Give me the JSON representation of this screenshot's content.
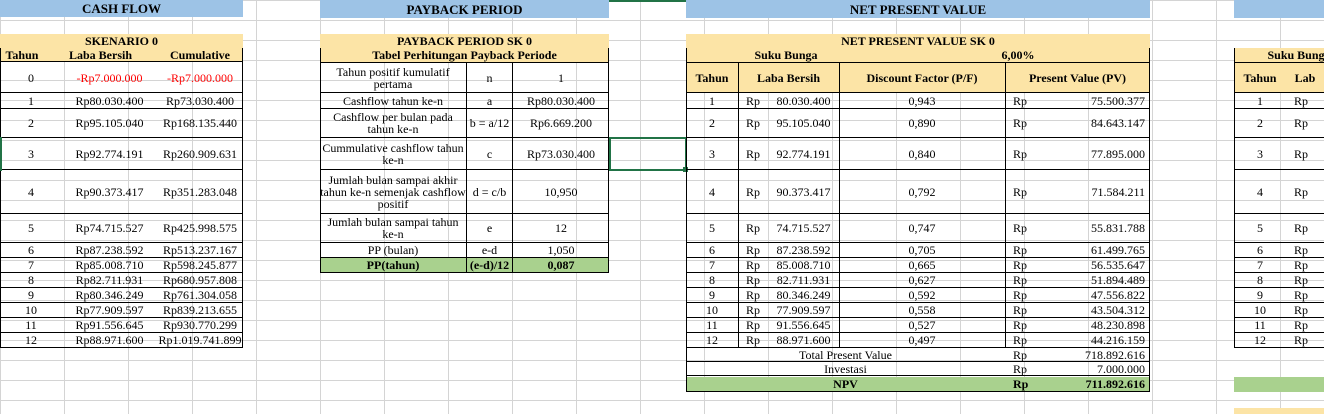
{
  "cash_flow": {
    "title": "CASH FLOW",
    "scenario": "SKENARIO 0",
    "headers": [
      "Tahun",
      "Laba Bersih",
      "Cumulative"
    ],
    "rows": [
      [
        "0",
        "-Rp7.000.000",
        "-Rp7.000.000"
      ],
      [
        "1",
        "Rp80.030.400",
        "Rp73.030.400"
      ],
      [
        "2",
        "Rp95.105.040",
        "Rp168.135.440"
      ],
      [
        "3",
        "Rp92.774.191",
        "Rp260.909.631"
      ],
      [
        "4",
        "Rp90.373.417",
        "Rp351.283.048"
      ],
      [
        "5",
        "Rp74.715.527",
        "Rp425.998.575"
      ],
      [
        "6",
        "Rp87.238.592",
        "Rp513.237.167"
      ],
      [
        "7",
        "Rp85.008.710",
        "Rp598.245.877"
      ],
      [
        "8",
        "Rp82.711.931",
        "Rp680.957.808"
      ],
      [
        "9",
        "Rp80.346.249",
        "Rp761.304.058"
      ],
      [
        "10",
        "Rp77.909.597",
        "Rp839.213.655"
      ],
      [
        "11",
        "Rp91.556.645",
        "Rp930.770.299"
      ],
      [
        "12",
        "Rp88.971.600",
        "Rp1.019.741.899"
      ]
    ]
  },
  "payback": {
    "title": "PAYBACK PERIOD",
    "subtitle": "PAYBACK PERIOD SK 0",
    "table_title": "Tabel Perhitungan Payback Periode",
    "rows": [
      {
        "label": "Tahun positif kumulatif pertama",
        "sym": "n",
        "value": "1"
      },
      {
        "label": "Cashflow tahun ke-n",
        "sym": "a",
        "value": "Rp80.030.400"
      },
      {
        "label": "Cashflow per bulan pada tahun ke-n",
        "sym": "b = a/12",
        "value": "Rp6.669.200"
      },
      {
        "label": "Cummulative cashflow tahun ke-n",
        "sym": "c",
        "value": "Rp73.030.400"
      },
      {
        "label": "Jumlah bulan sampai akhir tahun ke-n semenjak cashflow positif",
        "sym": "d = c/b",
        "value": "10,950"
      },
      {
        "label": "Jumlah bulan sampai tahun ke-n",
        "sym": "e",
        "value": "12"
      },
      {
        "label": "PP (bulan)",
        "sym": "e-d",
        "value": "1,050"
      }
    ],
    "result": {
      "label": "PP(tahun)",
      "sym": "(e-d)/12",
      "value": "0,087"
    }
  },
  "npv": {
    "title": "NET PRESENT VALUE",
    "subtitle": "NET PRESENT VALUE SK 0",
    "rate_label": "Suku Bunga",
    "rate_value": "6,00%",
    "headers": [
      "Tahun",
      "Laba Bersih",
      "Discount Factor (P/F)",
      "Present Value (PV)"
    ],
    "currency": "Rp",
    "rows": [
      [
        "1",
        "80.030.400",
        "0,943",
        "75.500.377"
      ],
      [
        "2",
        "95.105.040",
        "0,890",
        "84.643.147"
      ],
      [
        "3",
        "92.774.191",
        "0,840",
        "77.895.000"
      ],
      [
        "4",
        "90.373.417",
        "0,792",
        "71.584.211"
      ],
      [
        "5",
        "74.715.527",
        "0,747",
        "55.831.788"
      ],
      [
        "6",
        "87.238.592",
        "0,705",
        "61.499.765"
      ],
      [
        "7",
        "85.008.710",
        "0,665",
        "56.535.647"
      ],
      [
        "8",
        "82.711.931",
        "0,627",
        "51.894.489"
      ],
      [
        "9",
        "80.346.249",
        "0,592",
        "47.556.822"
      ],
      [
        "10",
        "77.909.597",
        "0,558",
        "43.504.312"
      ],
      [
        "11",
        "91.556.645",
        "0,527",
        "48.230.898"
      ],
      [
        "12",
        "88.971.600",
        "0,497",
        "44.216.159"
      ]
    ],
    "total_label": "Total Present Value",
    "total_value": "718.892.616",
    "invest_label": "Investasi",
    "invest_value": "7.000.000",
    "npv_label": "NPV",
    "npv_value": "711.892.616"
  },
  "right_partial": {
    "rate_label": "Suku Bung",
    "headers": [
      "Tahun",
      "Lab"
    ],
    "currency": "Rp",
    "years": [
      "1",
      "2",
      "3",
      "4",
      "5",
      "6",
      "7",
      "8",
      "9",
      "10",
      "11",
      "12"
    ]
  },
  "colors": {
    "header_blue": "#9dc3e6",
    "header_yellow": "#fce4a6",
    "result_green": "#a9d18e",
    "negative_red": "#ff0000",
    "selection": "#217346"
  }
}
